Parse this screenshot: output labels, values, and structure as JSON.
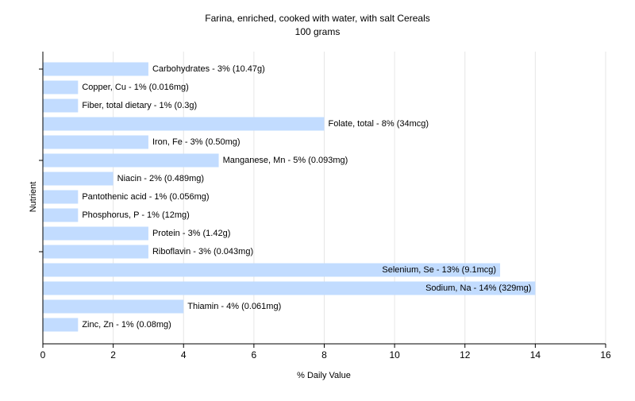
{
  "chart_data": {
    "type": "bar",
    "orientation": "horizontal",
    "title": "Farina, enriched, cooked with water, with salt Cereals",
    "subtitle": "100 grams",
    "xlabel": "% Daily Value",
    "ylabel": "Nutrient",
    "xlim": [
      0,
      16
    ],
    "xticks": [
      0,
      2,
      4,
      6,
      8,
      10,
      12,
      14,
      16
    ],
    "grid": true,
    "legend": "none",
    "bar_color": "#c2dcff",
    "categories": [
      "Carbohydrates",
      "Copper, Cu",
      "Fiber, total dietary",
      "Folate, total",
      "Iron, Fe",
      "Manganese, Mn",
      "Niacin",
      "Pantothenic acid",
      "Phosphorus, P",
      "Protein",
      "Riboflavin",
      "Selenium, Se",
      "Sodium, Na",
      "Thiamin",
      "Zinc, Zn"
    ],
    "values": [
      3,
      1,
      1,
      8,
      3,
      5,
      2,
      1,
      1,
      3,
      3,
      13,
      14,
      4,
      1
    ],
    "labels": [
      "Carbohydrates - 3% (10.47g)",
      "Copper, Cu - 1% (0.016mg)",
      "Fiber, total dietary - 1% (0.3g)",
      "Folate, total - 8% (34mcg)",
      "Iron, Fe - 3% (0.50mg)",
      "Manganese, Mn - 5% (0.093mg)",
      "Niacin - 2% (0.489mg)",
      "Pantothenic acid - 1% (0.056mg)",
      "Phosphorus, P - 1% (12mg)",
      "Protein - 3% (1.42g)",
      "Riboflavin - 3% (0.043mg)",
      "Selenium, Se - 13% (9.1mcg)",
      "Sodium, Na - 14% (329mg)",
      "Thiamin - 4% (0.061mg)",
      "Zinc, Zn - 1% (0.08mg)"
    ]
  }
}
